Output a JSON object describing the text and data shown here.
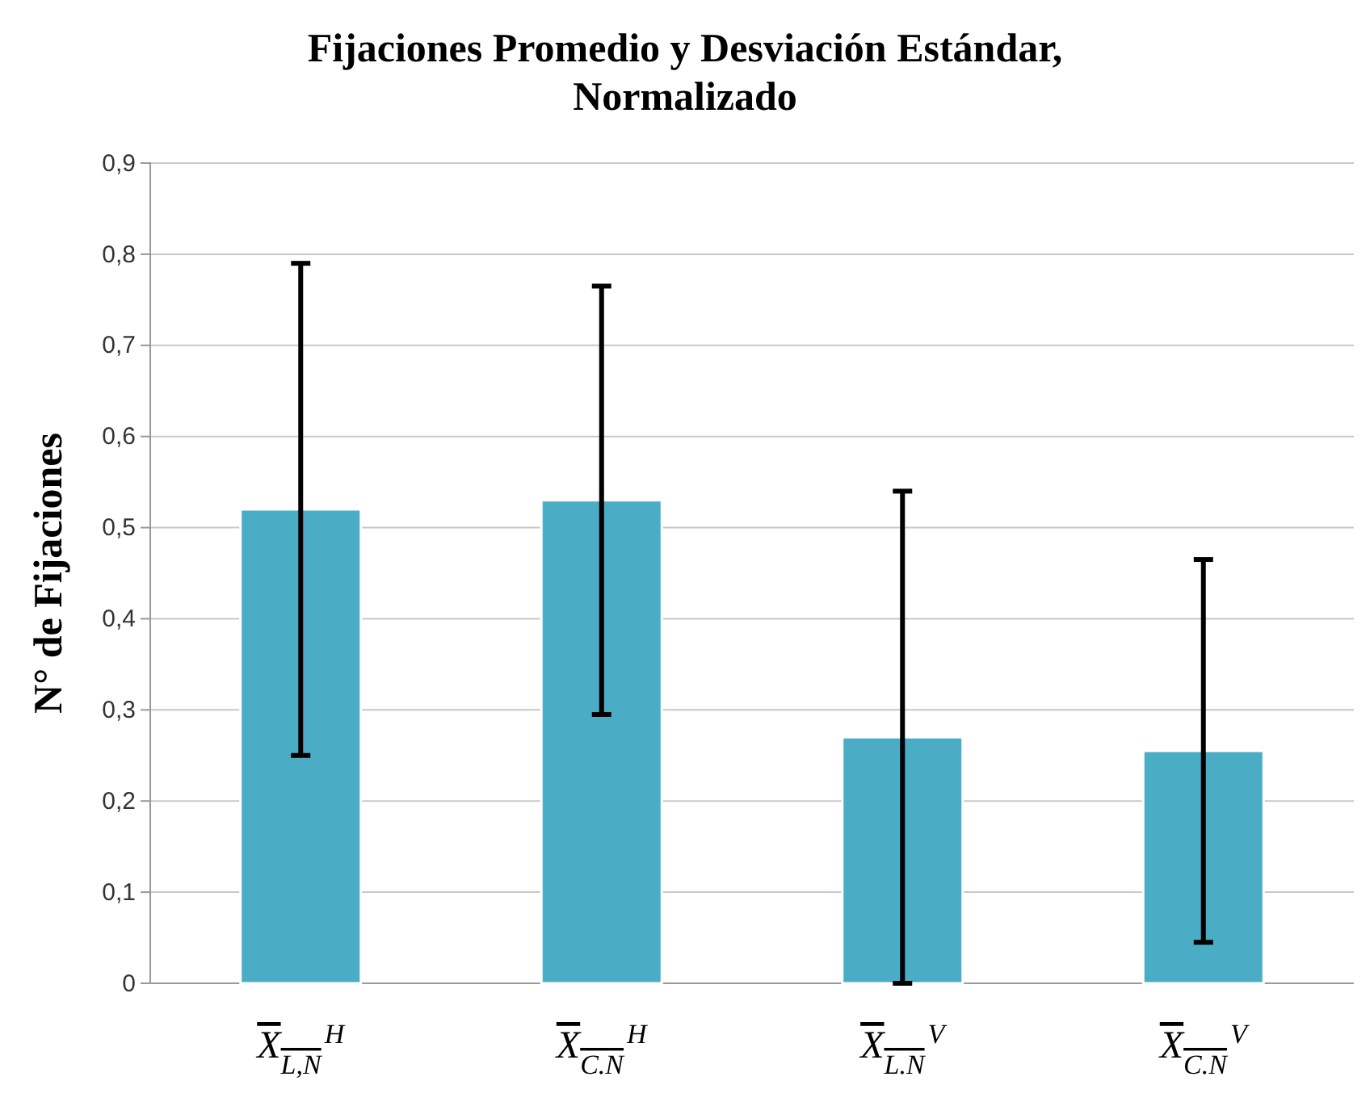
{
  "chart_data": {
    "type": "bar",
    "title": "Fijaciones Promedio y Desviación Estándar, Normalizado",
    "ylabel": "N° de Fijaciones",
    "categories": [
      "X$_{L,N}$$^{H}$",
      "X$_{C.N}$$^{H}$",
      "X$_{L.N}$$^{V}$",
      "X$_{C.N}$$^{V}$"
    ],
    "values": [
      0.52,
      0.53,
      0.27,
      0.255
    ],
    "errors": [
      0.27,
      0.235,
      0.27,
      0.21
    ],
    "color": "#4bacc6",
    "ylim": [
      0,
      0.9
    ],
    "yticks": [
      {
        "value": 0,
        "label": "0"
      },
      {
        "value": 0.1,
        "label": "0,1"
      },
      {
        "value": 0.2,
        "label": "0,2"
      },
      {
        "value": 0.3,
        "label": "0,3"
      },
      {
        "value": 0.4,
        "label": "0,4"
      },
      {
        "value": 0.5,
        "label": "0,5"
      },
      {
        "value": 0.6,
        "label": "0,6"
      },
      {
        "value": 0.7,
        "label": "0,7"
      },
      {
        "value": 0.8,
        "label": "0,8"
      },
      {
        "value": 0.9,
        "label": "0,9"
      }
    ],
    "grid": "y"
  }
}
